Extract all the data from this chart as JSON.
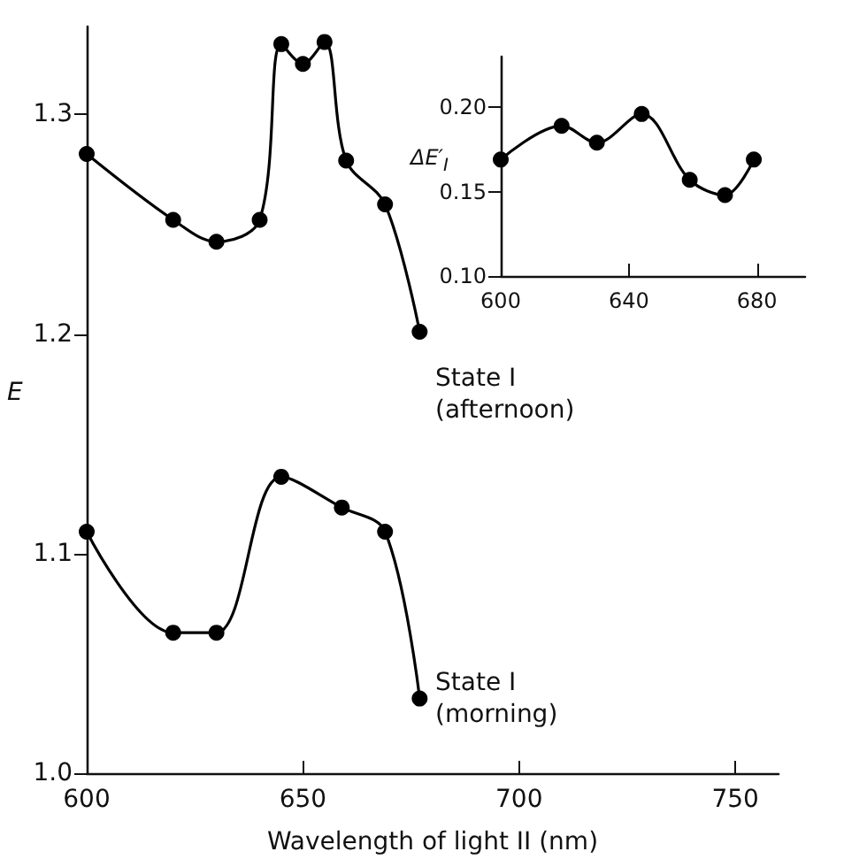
{
  "chart_data": [
    {
      "type": "line",
      "xlabel": "Wavelength of light II (nm)",
      "ylabel": "E",
      "xlim": [
        600,
        760
      ],
      "xticks": [
        600,
        650,
        700,
        750
      ],
      "ylim": [
        1.0,
        1.34
      ],
      "yticks": [
        {
          "value": 1.0,
          "label": "1.0"
        },
        1.1,
        1.2,
        1.3
      ],
      "marker": "circle",
      "series": [
        {
          "color": "#000000",
          "x": [
            600,
            620,
            630,
            640,
            645,
            650,
            655,
            660,
            669,
            677
          ],
          "values": [
            1.282,
            1.252,
            1.242,
            1.252,
            1.332,
            1.323,
            1.333,
            1.279,
            1.259,
            1.201
          ]
        },
        {
          "color": "#000000",
          "x": [
            600,
            620,
            630,
            645,
            659,
            669,
            677
          ],
          "values": [
            1.11,
            1.064,
            1.064,
            1.135,
            1.121,
            1.11,
            1.034
          ]
        }
      ],
      "annotations": [
        "State I\n(afternoon)",
        "State I\n(morning)"
      ]
    },
    {
      "type": "line",
      "ylabel": "ΔE′$_{I}$",
      "xlim": [
        600,
        695
      ],
      "xticks": [
        600,
        640,
        680
      ],
      "ylim": [
        0.1,
        0.23
      ],
      "yticks": [
        {
          "value": 0.1,
          "label": "0.10"
        },
        0.15,
        {
          "value": 0.2,
          "label": "0.20"
        }
      ],
      "marker": "circle",
      "series": [
        {
          "color": "#000000",
          "x": [
            600,
            619,
            630,
            644,
            659,
            670,
            679
          ],
          "values": [
            0.169,
            0.189,
            0.179,
            0.196,
            0.157,
            0.148,
            0.169
          ]
        }
      ]
    }
  ]
}
